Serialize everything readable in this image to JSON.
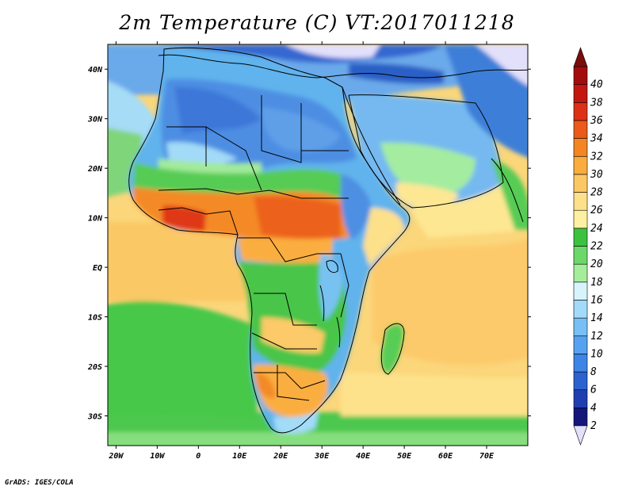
{
  "title": "2m Temperature (C) VT:2017011218",
  "footer": "GrADS: IGES/COLA",
  "map": {
    "variable": "2m Temperature",
    "units": "C",
    "valid_time": "2017011218",
    "projection": "latlon",
    "lon_range": [
      -22,
      80
    ],
    "lat_range": [
      -36,
      45
    ],
    "x_ticks": [
      {
        "value": -20,
        "label": "20W"
      },
      {
        "value": -10,
        "label": "10W"
      },
      {
        "value": 0,
        "label": "0"
      },
      {
        "value": 10,
        "label": "10E"
      },
      {
        "value": 20,
        "label": "20E"
      },
      {
        "value": 30,
        "label": "30E"
      },
      {
        "value": 40,
        "label": "40E"
      },
      {
        "value": 50,
        "label": "50E"
      },
      {
        "value": 60,
        "label": "60E"
      },
      {
        "value": 70,
        "label": "70E"
      }
    ],
    "y_ticks": [
      {
        "value": 40,
        "label": "40N"
      },
      {
        "value": 30,
        "label": "30N"
      },
      {
        "value": 20,
        "label": "20N"
      },
      {
        "value": 10,
        "label": "10N"
      },
      {
        "value": 0,
        "label": "EQ"
      },
      {
        "value": -10,
        "label": "10S"
      },
      {
        "value": -20,
        "label": "20S"
      },
      {
        "value": -30,
        "label": "30S"
      }
    ]
  },
  "colorbar": {
    "levels": [
      "2",
      "4",
      "6",
      "8",
      "10",
      "12",
      "14",
      "16",
      "18",
      "20",
      "22",
      "24",
      "26",
      "28",
      "30",
      "32",
      "34",
      "36",
      "38",
      "40"
    ],
    "colors": [
      "#14167a",
      "#1f3fb0",
      "#2b62d0",
      "#3c84e6",
      "#56a2f0",
      "#78bff6",
      "#a3daf9",
      "#d8f4fb",
      "#a4ed9b",
      "#6cd86a",
      "#3cc23f",
      "#fdf0a2",
      "#fde08a",
      "#fcc865",
      "#fbac3f",
      "#f38522",
      "#eb5a1a",
      "#dc3116",
      "#c21611",
      "#a30c0c"
    ],
    "below_color": "#e2e0fb",
    "above_color": "#7a0c0c"
  }
}
